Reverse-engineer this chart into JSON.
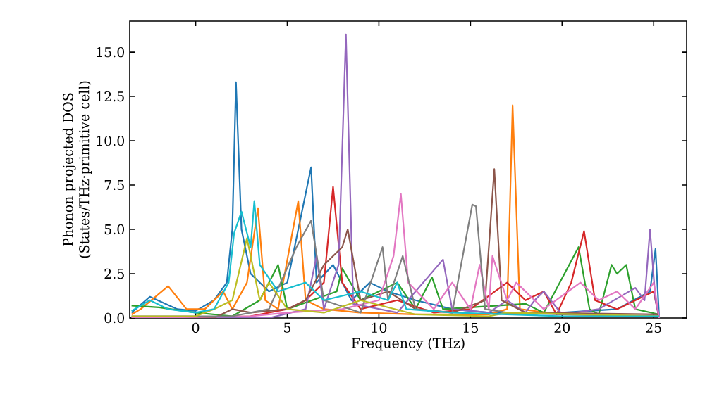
{
  "chart_data": {
    "type": "line",
    "xlabel": "Frequency (THz)",
    "ylabel": "Phonon projected DOS (States/THz·primitive cell)",
    "xlim": [
      -3.6,
      26.8
    ],
    "ylim": [
      0,
      16.75
    ],
    "xticks": [
      0,
      5,
      10,
      15,
      20,
      25
    ],
    "yticks": [
      {
        "value": 0,
        "label": "0.0"
      },
      2.5,
      {
        "value": 5,
        "label": "5.0"
      },
      7.5,
      {
        "value": 10,
        "label": "10.0"
      },
      12.5,
      {
        "value": 15,
        "label": "15.0"
      }
    ],
    "grid": false,
    "marker": "none",
    "line_style": "solid",
    "series": [
      {
        "color": "#1f77b4",
        "x": [
          -3.5,
          -2.5,
          -1,
          0,
          1,
          1.7,
          2,
          2.2,
          2.5,
          3,
          4,
          5,
          6.3,
          6.6,
          7.5,
          8.5,
          9.5,
          10.5,
          12,
          14,
          16,
          18,
          20,
          23,
          24.8,
          25.1,
          25.3
        ],
        "values": [
          0.3,
          1.2,
          0.5,
          0.4,
          1.0,
          2,
          5,
          13.3,
          5,
          2.5,
          1.5,
          2,
          8.5,
          2,
          3,
          1,
          2,
          1.5,
          1,
          0.5,
          0.3,
          0.2,
          0.3,
          0.5,
          1.5,
          3.9,
          0
        ]
      },
      {
        "color": "#ff7f0e",
        "x": [
          -3.5,
          -3,
          -1.5,
          -0.5,
          0.5,
          1.5,
          2,
          2.8,
          3.4,
          3.8,
          4.5,
          5.6,
          6,
          7,
          9,
          12,
          16,
          17,
          17.3,
          17.7,
          20,
          25.3
        ],
        "values": [
          0.2,
          0.5,
          1.8,
          0.5,
          0.5,
          1.5,
          0.5,
          2,
          6.2,
          1,
          0.5,
          6.6,
          1,
          0.5,
          0.3,
          0.2,
          0.2,
          0.5,
          12,
          0.5,
          0.2,
          0.1
        ]
      },
      {
        "color": "#2ca02c",
        "x": [
          -3.5,
          -2,
          0,
          2,
          3.5,
          4.5,
          5,
          7.7,
          8,
          9,
          11,
          12,
          12.5,
          12.9,
          13.5,
          18,
          19,
          20.9,
          21.5,
          22,
          22.7,
          23,
          23.5,
          24,
          25.3
        ],
        "values": [
          0.7,
          0.6,
          0.3,
          0.1,
          1,
          3,
          0.5,
          1.5,
          2.8,
          1,
          2,
          0.5,
          1.5,
          2.3,
          0.5,
          0.8,
          0.3,
          4,
          0.5,
          0.2,
          3,
          2.5,
          3,
          0.5,
          0.2
        ]
      },
      {
        "color": "#d62728",
        "x": [
          -3.5,
          3,
          5,
          6,
          7,
          7.5,
          8,
          9,
          11,
          13,
          15,
          17,
          18,
          19,
          19.7,
          20.5,
          21.2,
          21.8,
          23,
          25,
          25.3
        ],
        "values": [
          0,
          0.1,
          0.5,
          1,
          2,
          7.4,
          2,
          0.5,
          1,
          0.3,
          0.5,
          2,
          1,
          1.5,
          0.2,
          2,
          4.9,
          1,
          0.5,
          1.5,
          0
        ]
      },
      {
        "color": "#9467bd",
        "x": [
          -3.5,
          4,
          6,
          6.6,
          7,
          7.8,
          8.2,
          8.6,
          11,
          13.5,
          14,
          16,
          17,
          18,
          18.5,
          19,
          20,
          22,
          24,
          24.5,
          24.8,
          25.1,
          25.3
        ],
        "values": [
          0,
          0,
          0.5,
          3.5,
          0.5,
          3,
          16,
          0.8,
          0.3,
          3.3,
          0.5,
          0.3,
          1,
          0.3,
          1,
          1.5,
          0.2,
          0.5,
          1.7,
          1,
          5,
          1,
          0
        ]
      },
      {
        "color": "#8c564b",
        "x": [
          -3.5,
          1,
          2,
          3,
          5,
          6,
          7,
          8,
          8.3,
          9,
          10.5,
          12,
          14,
          15.8,
          16.3,
          16.7,
          18,
          25.3
        ],
        "values": [
          0,
          0,
          0.5,
          0.3,
          0.5,
          1,
          3,
          4,
          5,
          1,
          1.5,
          0.5,
          0.3,
          1,
          8.4,
          1,
          0.3,
          0.2
        ]
      },
      {
        "color": "#e377c2",
        "x": [
          -3.5,
          3,
          5,
          8,
          10,
          10.8,
          11.2,
          11.6,
          13,
          14,
          15,
          15.5,
          16,
          16.2,
          17,
          17.5,
          19,
          21,
          22,
          23,
          24,
          25,
          25.3
        ],
        "values": [
          0,
          0.1,
          0.3,
          0.5,
          1,
          3.5,
          7,
          2,
          0.5,
          2,
          0.5,
          3,
          0.5,
          3.5,
          1,
          2,
          0.5,
          2,
          1,
          1.5,
          0.5,
          2,
          0
        ]
      },
      {
        "color": "#7f7f7f",
        "x": [
          -3.5,
          2,
          4,
          5.5,
          6.3,
          7,
          9,
          10.2,
          10.5,
          11.3,
          12,
          14,
          15.1,
          15.3,
          15.8,
          17,
          20,
          25.3
        ],
        "values": [
          0.1,
          0.1,
          0.5,
          4,
          5.5,
          1,
          0.3,
          4,
          1,
          3.5,
          0.5,
          0.3,
          6.4,
          6.3,
          0.5,
          0.3,
          0.2,
          0.1
        ]
      },
      {
        "color": "#bcbd22",
        "x": [
          -3.5,
          0,
          1,
          2,
          2.8,
          3.5,
          4,
          5,
          7,
          9,
          12,
          16,
          17,
          25.3
        ],
        "values": [
          0.1,
          0.1,
          0.5,
          1,
          4.5,
          1,
          2,
          0.5,
          0.3,
          1,
          0.2,
          0.1,
          0.3,
          0.1
        ]
      },
      {
        "color": "#17becf",
        "x": [
          -3.5,
          -2.5,
          -1.5,
          0,
          1,
          1.8,
          2.1,
          2.5,
          3,
          3.2,
          3.5,
          4.5,
          6,
          7,
          9,
          10.5,
          11,
          11.5,
          14,
          17,
          20,
          25.3
        ],
        "values": [
          0.4,
          1,
          0.5,
          0.3,
          0.5,
          2,
          4.8,
          6,
          4,
          6.6,
          3,
          1.5,
          2,
          1,
          1.5,
          1,
          2,
          0.5,
          0.3,
          0.2,
          0.1,
          0.1
        ]
      }
    ]
  }
}
